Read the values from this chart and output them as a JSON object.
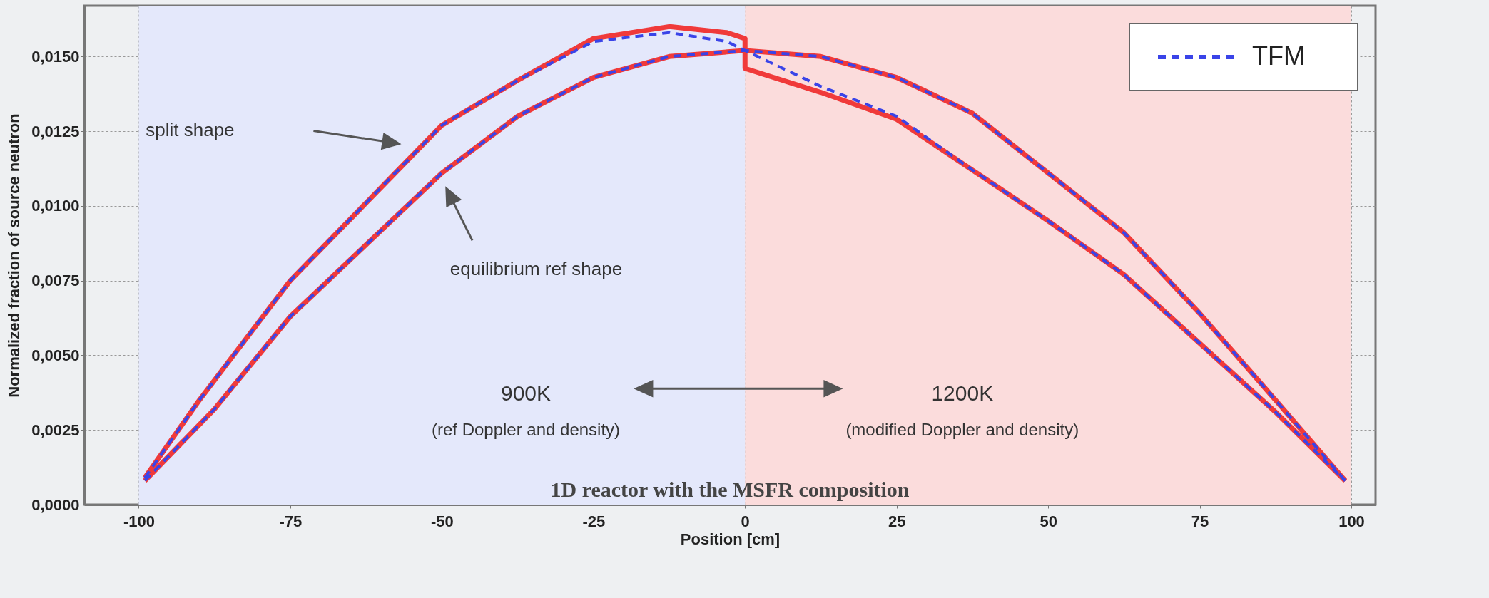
{
  "chart_data": {
    "type": "line",
    "title": "1D reactor with the MSFR composition",
    "xlabel": "Position [cm]",
    "ylabel": "Normalized fraction of source neutron",
    "xlim": [
      -109,
      104
    ],
    "xticks": [
      -100,
      -75,
      -50,
      -25,
      0,
      25,
      50,
      75,
      100
    ],
    "ylim": [
      0,
      0.0167
    ],
    "yticks": [
      {
        "value": 0,
        "label": "0,0000"
      },
      {
        "value": 0.0025,
        "label": "0,0025"
      },
      {
        "value": 0.005,
        "label": "0,0050"
      },
      {
        "value": 0.0075,
        "label": "0,0075"
      },
      {
        "value": 0.01,
        "label": "0,0100"
      },
      {
        "value": 0.0125,
        "label": "0,0125"
      },
      {
        "value": 0.015,
        "label": "0,0150"
      }
    ],
    "grid": true,
    "legend": "top right",
    "series": [
      {
        "color": "#f03a3a",
        "line_style": "solid",
        "x": [
          -99,
          -90,
          -75,
          -62.5,
          -50,
          -37.5,
          -25,
          -12.5,
          -3,
          0,
          0,
          12.5,
          25,
          37.5,
          50,
          62.5,
          75,
          87.5,
          99
        ],
        "values": [
          0.0009,
          0.0035,
          0.0075,
          0.0101,
          0.0127,
          0.0142,
          0.0156,
          0.016,
          0.0158,
          0.0156,
          0.0146,
          0.0138,
          0.0129,
          0.0112,
          0.0095,
          0.0077,
          0.0054,
          0.0031,
          0.0008
        ]
      },
      {
        "color": "#f03a3a",
        "line_style": "solid",
        "x": [
          -99,
          -87.5,
          -75,
          -62.5,
          -50,
          -37.5,
          -25,
          -12.5,
          0,
          12.5,
          25,
          37.5,
          50,
          62.5,
          75,
          87.5,
          99
        ],
        "values": [
          0.0008,
          0.0032,
          0.0063,
          0.0087,
          0.0111,
          0.013,
          0.0143,
          0.015,
          0.0152,
          0.015,
          0.0143,
          0.0131,
          0.0111,
          0.0091,
          0.0064,
          0.0035,
          0.0008
        ]
      },
      {
        "name": "TFM",
        "color": "#3a44e8",
        "line_style": "dashed",
        "x": [
          -99,
          -90,
          -75,
          -62.5,
          -50,
          -37.5,
          -25,
          -12.5,
          -3,
          0,
          12.5,
          25,
          37.5,
          50,
          62.5,
          75,
          87.5,
          99
        ],
        "values": [
          0.0009,
          0.0035,
          0.0075,
          0.0101,
          0.0127,
          0.0142,
          0.0155,
          0.0158,
          0.0155,
          0.0152,
          0.014,
          0.013,
          0.0112,
          0.0095,
          0.0077,
          0.0054,
          0.0031,
          0.0008
        ]
      },
      {
        "color": "#3a44e8",
        "line_style": "dashed",
        "x": [
          -99,
          -87.5,
          -75,
          -62.5,
          -50,
          -37.5,
          -25,
          -12.5,
          0,
          12.5,
          25,
          37.5,
          50,
          62.5,
          75,
          87.5,
          99
        ],
        "values": [
          0.0008,
          0.0032,
          0.0063,
          0.0087,
          0.0111,
          0.013,
          0.0143,
          0.015,
          0.0152,
          0.015,
          0.0143,
          0.0131,
          0.0111,
          0.0091,
          0.0064,
          0.0035,
          0.0008
        ]
      }
    ],
    "bands": [
      {
        "axis": "x",
        "from": -100,
        "to": 0,
        "label": "900K",
        "color": "#e4e8fb"
      },
      {
        "axis": "x",
        "from": 0,
        "to": 100,
        "label": "1200K",
        "color": "#fbdcdc"
      }
    ],
    "annotations": [
      "split shape",
      "equilibrium ref shape",
      "(ref Doppler and density)",
      "(modified Doppler and density)"
    ]
  }
}
